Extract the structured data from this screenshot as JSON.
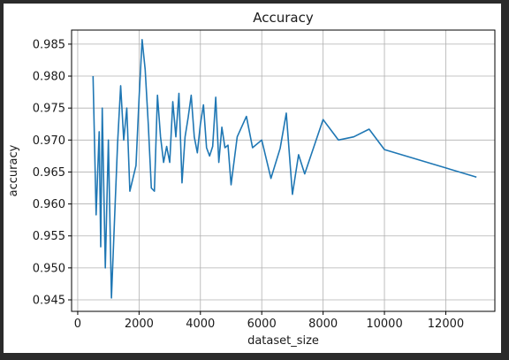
{
  "chart_data": {
    "type": "line",
    "title": "Accuracy",
    "xlabel": "dataset_size",
    "ylabel": "accuracy",
    "xlim": [
      -200,
      13600
    ],
    "ylim": [
      0.9432,
      0.9872
    ],
    "x_ticks": [
      0,
      2000,
      4000,
      6000,
      8000,
      10000,
      12000
    ],
    "x_tick_labels": [
      "0",
      "2000",
      "4000",
      "6000",
      "8000",
      "10000",
      "12000"
    ],
    "y_ticks": [
      0.945,
      0.95,
      0.955,
      0.96,
      0.965,
      0.97,
      0.975,
      0.98,
      0.985
    ],
    "y_tick_labels": [
      "0.945",
      "0.950",
      "0.955",
      "0.960",
      "0.965",
      "0.970",
      "0.975",
      "0.980",
      "0.985"
    ],
    "grid": true,
    "line_color": "#1f77b4",
    "series": [
      {
        "x": [
          500,
          600,
          700,
          750,
          800,
          900,
          1000,
          1100,
          1200,
          1300,
          1400,
          1500,
          1600,
          1700,
          1900,
          2000,
          2100,
          2200,
          2300,
          2400,
          2500,
          2600,
          2700,
          2800,
          2900,
          3000,
          3100,
          3200,
          3300,
          3400,
          3500,
          3600,
          3700,
          3800,
          3900,
          4000,
          4100,
          4200,
          4300,
          4400,
          4500,
          4600,
          4700,
          4800,
          4900,
          5000,
          5200,
          5500,
          5700,
          6000,
          6300,
          6600,
          6800,
          7000,
          7200,
          7400,
          8000,
          8500,
          9000,
          9500,
          10000,
          13000
        ],
        "y": [
          0.98,
          0.9583,
          0.9713,
          0.9533,
          0.975,
          0.95,
          0.97,
          0.9453,
          0.9575,
          0.9695,
          0.9785,
          0.97,
          0.975,
          0.962,
          0.966,
          0.9765,
          0.9857,
          0.981,
          0.9725,
          0.9625,
          0.962,
          0.977,
          0.9705,
          0.9665,
          0.969,
          0.9665,
          0.976,
          0.9705,
          0.9773,
          0.9633,
          0.9705,
          0.9735,
          0.977,
          0.9705,
          0.968,
          0.9725,
          0.9755,
          0.9688,
          0.9675,
          0.969,
          0.9767,
          0.9665,
          0.972,
          0.9688,
          0.9692,
          0.963,
          0.9705,
          0.9737,
          0.9688,
          0.97,
          0.964,
          0.9687,
          0.9742,
          0.9615,
          0.9677,
          0.9647,
          0.9732,
          0.97,
          0.9705,
          0.9717,
          0.9685,
          0.9642
        ]
      }
    ]
  }
}
